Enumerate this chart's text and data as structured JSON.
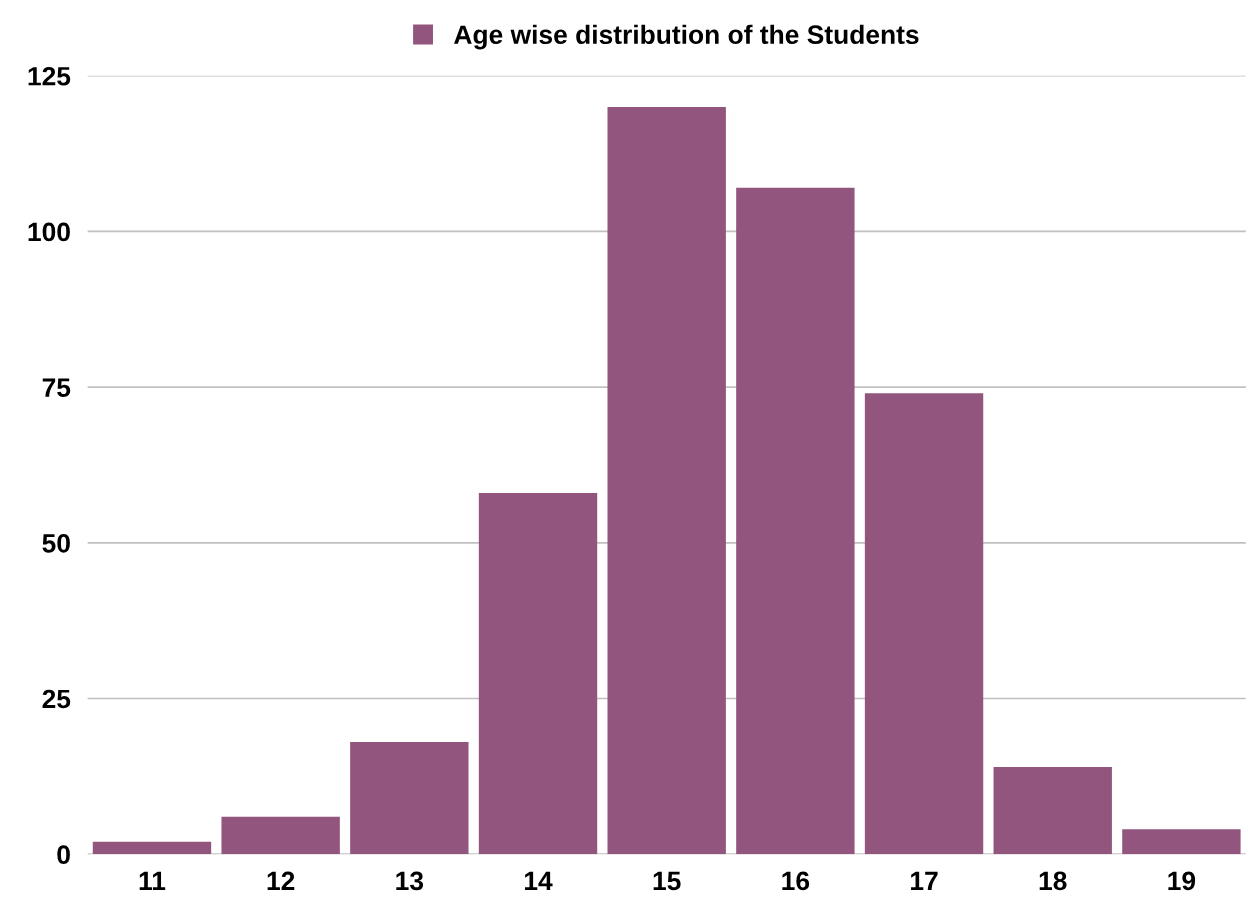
{
  "chart_data": {
    "type": "bar",
    "categories": [
      "11",
      "12",
      "13",
      "14",
      "15",
      "16",
      "17",
      "18",
      "19"
    ],
    "series": [
      {
        "name": "Age wise distribution of the Students",
        "color": "#91557e",
        "values": [
          2,
          6,
          18,
          58,
          120,
          107,
          74,
          14,
          4
        ]
      }
    ],
    "ylim": [
      0,
      125
    ],
    "yticks": [
      0,
      25,
      50,
      75,
      100,
      125
    ],
    "grid": "y",
    "legend": "top"
  }
}
